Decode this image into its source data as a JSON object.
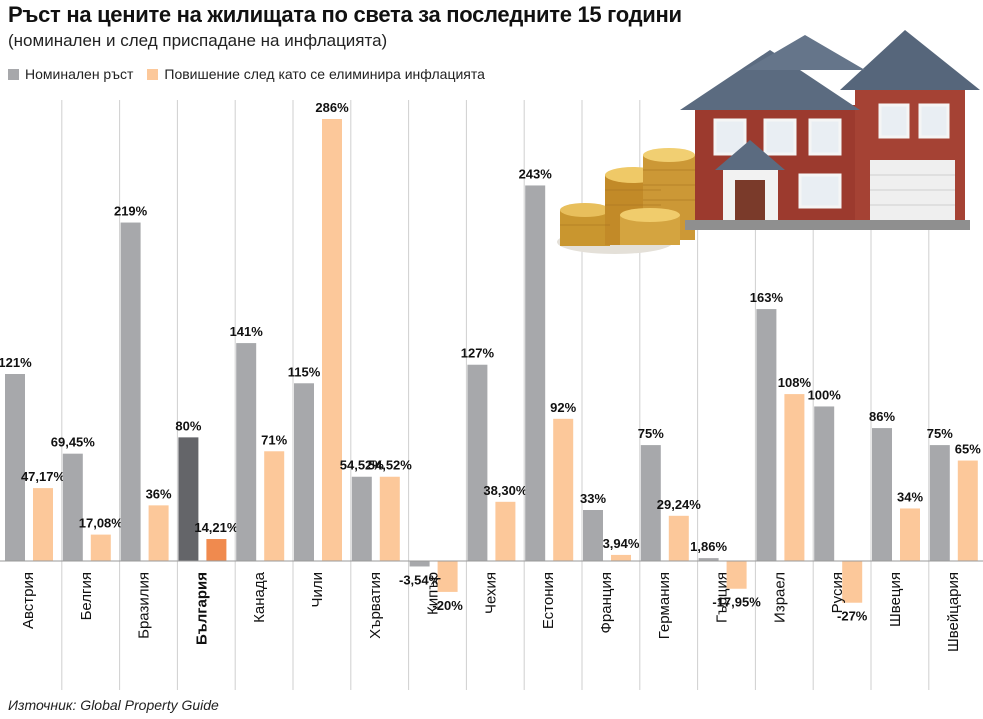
{
  "title": "Ръст на цените на жилищата по света за последните 15 години",
  "subtitle": "(номинален и след приспадане на инфлацията)",
  "source": "Източник: Global Property Guide",
  "colors": {
    "nominal": "#a7a8ab",
    "real": "#fcc89a",
    "highlight_nominal": "#646569",
    "highlight_real": "#f08a4e",
    "grid": "#cfcfcf"
  },
  "chart_data": {
    "type": "bar",
    "categories": [
      "Австрия",
      "Белгия",
      "Бразилия",
      "България",
      "Канада",
      "Чили",
      "Хърватия",
      "Кипър",
      "Чехия",
      "Естония",
      "Франция",
      "Германия",
      "Гърция",
      "Израел",
      "Русия",
      "Швеция",
      "Швейцария"
    ],
    "highlight_category": "България",
    "series": [
      {
        "name": "Номинален ръст",
        "values": [
          121,
          69.45,
          219,
          80,
          141,
          115,
          54.52,
          -3.54,
          127,
          243,
          33,
          75,
          1.86,
          163,
          100,
          86,
          75
        ],
        "labels": [
          "121%",
          "69,45%",
          "219%",
          "80%",
          "141%",
          "115%",
          "54,52%",
          "-3,54%",
          "127%",
          "243%",
          "33%",
          "75%",
          "1,86%",
          "163%",
          "100%",
          "86%",
          "75%"
        ]
      },
      {
        "name": "Повишение след като се елиминира инфлацията",
        "values": [
          47.17,
          17.08,
          36,
          14.21,
          71,
          286,
          54.52,
          -20,
          38.3,
          92,
          3.94,
          29.24,
          -17.95,
          108,
          -27,
          34,
          65
        ],
        "labels": [
          "47,17%",
          "17,08%",
          "36%",
          "14,21%",
          "71%",
          "286%",
          "54,52%",
          "-20%",
          "38,30%",
          "92%",
          "3,94%",
          "29,24%",
          "-17,95%",
          "108%",
          "-27%",
          "34%",
          "65%"
        ]
      }
    ],
    "ylim": [
      -30,
      300
    ],
    "grid": true,
    "legend_position": "top-left"
  }
}
